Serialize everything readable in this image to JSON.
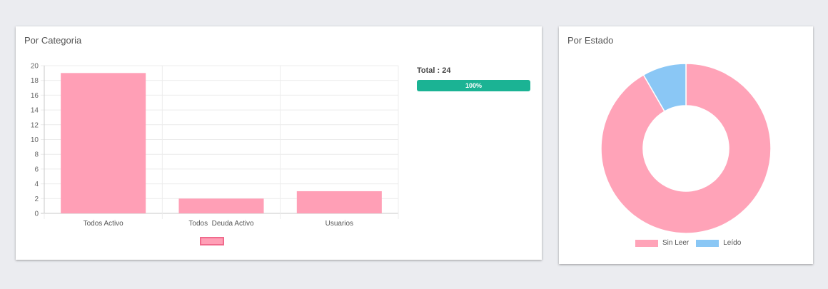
{
  "categoria": {
    "title": "Por Categoria",
    "total_label": "Total : 24",
    "progress_value": 100,
    "progress_label": "100%"
  },
  "estado": {
    "title": "Por Estado"
  },
  "colors": {
    "bar_fill": "#ff9fb6",
    "bar_border": "#f06a8c",
    "progress": "#1bb394",
    "sin_leer": "#ffa3b8",
    "leido": "#8ac7f5"
  },
  "chart_data": [
    {
      "type": "bar",
      "categories": [
        "Todos Activo",
        "Todos  Deuda Activo",
        "Usuarios"
      ],
      "series": [
        {
          "values": [
            19,
            2,
            3
          ]
        }
      ],
      "ylim": [
        0,
        20
      ],
      "yticks": [
        0,
        2,
        4,
        6,
        8,
        10,
        12,
        14,
        16,
        18,
        20
      ],
      "grid": true,
      "legend": "bottom"
    },
    {
      "type": "pie",
      "labels": [
        "Sin Leer",
        "Leído"
      ],
      "values": [
        22,
        2
      ],
      "donut": true,
      "legend": "bottom"
    }
  ]
}
